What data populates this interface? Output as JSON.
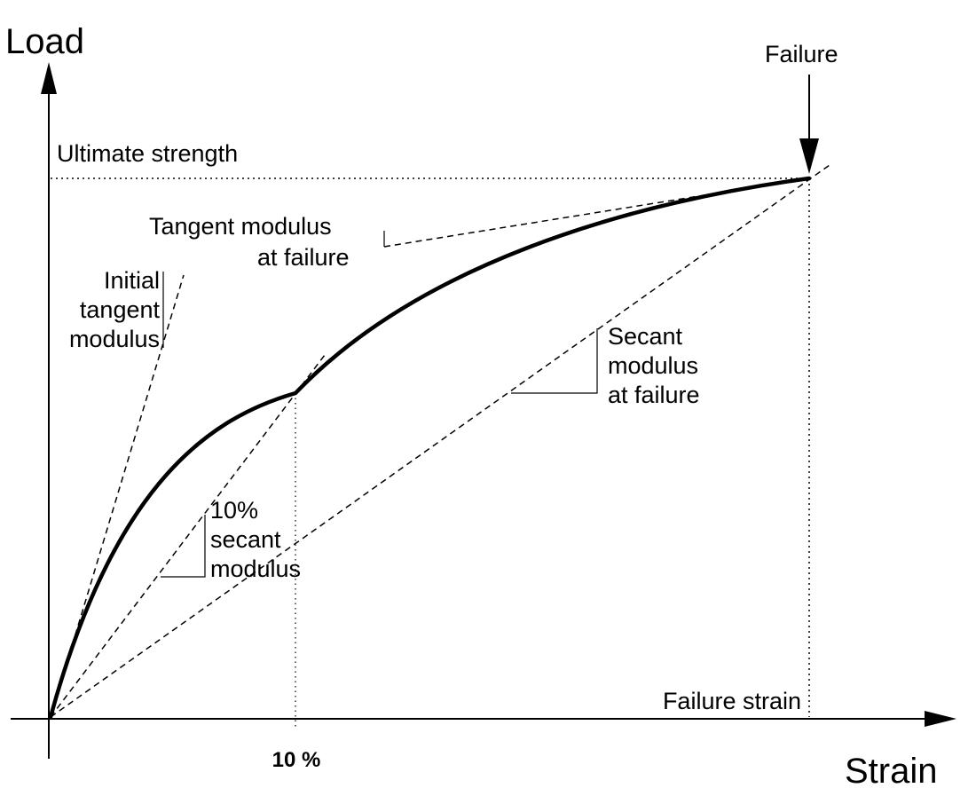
{
  "axes": {
    "y_title": "Load",
    "x_title": "Strain"
  },
  "labels": {
    "failure": "Failure",
    "ultimate_strength": "Ultimate strength",
    "tangent_modulus_failure": [
      "Tangent modulus",
      "at failure"
    ],
    "initial_tangent_modulus": [
      "Initial",
      "tangent",
      "modulus"
    ],
    "secant_modulus_failure": [
      "Secant",
      "modulus",
      "at failure"
    ],
    "secant_10": [
      "10%",
      "secant",
      "modulus"
    ],
    "failure_strain": "Failure strain",
    "ten_percent_tick": "10 %"
  },
  "colors": {
    "ink": "#000000",
    "background": "#ffffff"
  }
}
